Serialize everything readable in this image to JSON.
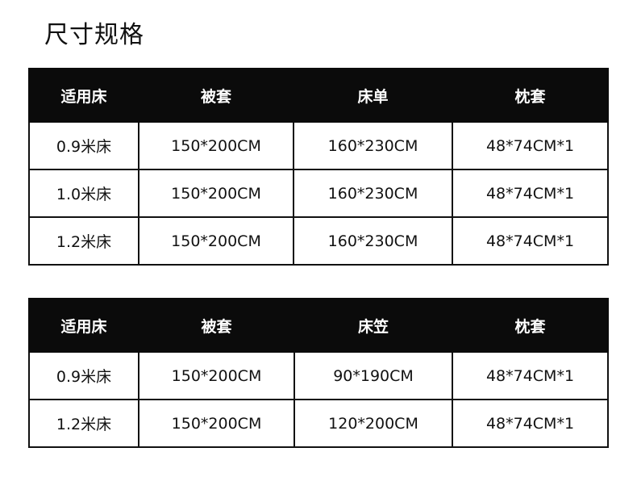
{
  "title": "尺寸规格",
  "tables": [
    {
      "headers": [
        "适用床",
        "被套",
        "床单",
        "枕套"
      ],
      "rows": [
        [
          "0.9米床",
          "150*200CM",
          "160*230CM",
          "48*74CM*1"
        ],
        [
          "1.0米床",
          "150*200CM",
          "160*230CM",
          "48*74CM*1"
        ],
        [
          "1.2米床",
          "150*200CM",
          "160*230CM",
          "48*74CM*1"
        ]
      ]
    },
    {
      "headers": [
        "适用床",
        "被套",
        "床笠",
        "枕套"
      ],
      "rows": [
        [
          "0.9米床",
          "150*200CM",
          "90*190CM",
          "48*74CM*1"
        ],
        [
          "1.2米床",
          "150*200CM",
          "120*200CM",
          "48*74CM*1"
        ]
      ]
    }
  ],
  "colors": {
    "header_bg": "#0b0b0b",
    "header_text": "#ffffff",
    "border": "#111111"
  }
}
